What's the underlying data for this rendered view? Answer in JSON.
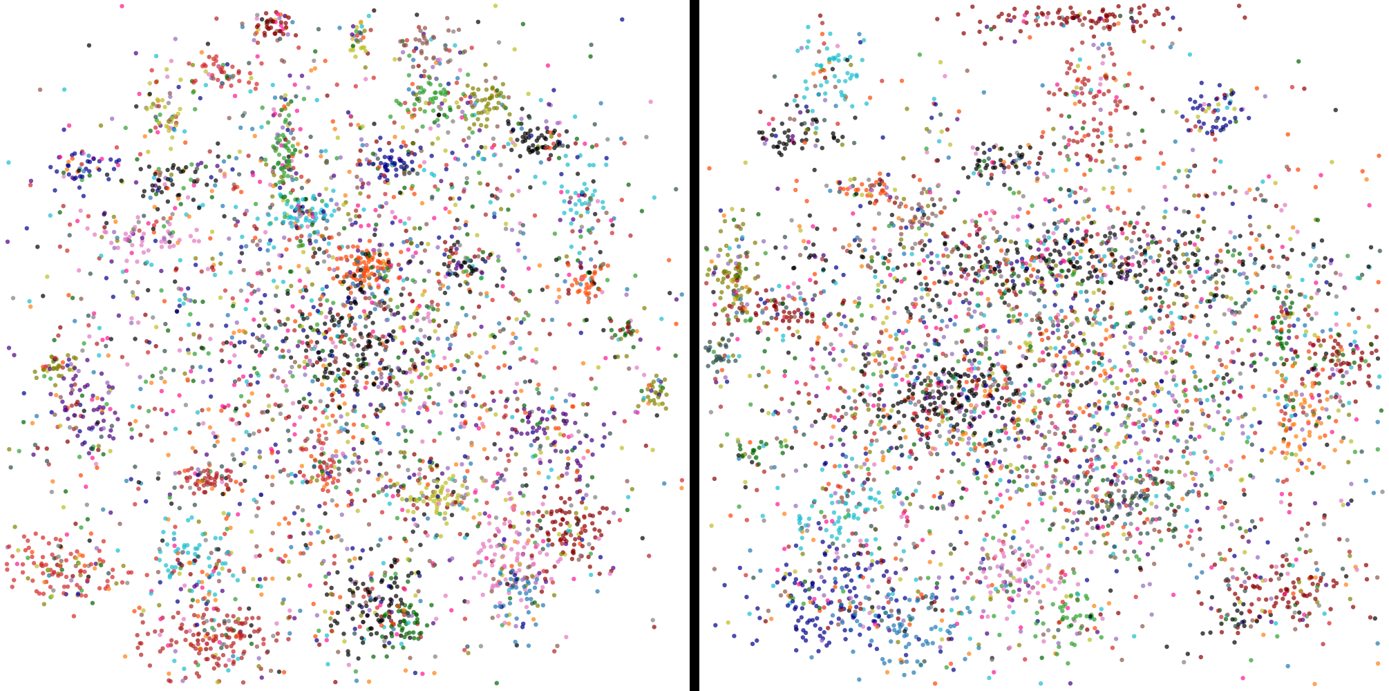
{
  "figure": {
    "divider_color": "#000000",
    "background_color": "#ffffff"
  },
  "palette": [
    "#1f77b4",
    "#ff7f0e",
    "#2ca02c",
    "#d62728",
    "#9467bd",
    "#8c564b",
    "#e377c2",
    "#7f7f7f",
    "#bcbd22",
    "#17becf",
    "#000000",
    "#ff4500",
    "#006400",
    "#8b0000",
    "#00008b",
    "#808000",
    "#4b0082",
    "#ff1493",
    "#2f4f4f",
    "#b22222"
  ],
  "chart_data": [
    {
      "type": "scatter",
      "title": "",
      "xlabel": "",
      "ylabel": "",
      "axes_visible": false,
      "grid": false,
      "legend": "none",
      "xlim": [
        0,
        100
      ],
      "ylim": [
        0,
        100
      ],
      "point_opacity": 0.7,
      "seed": 11,
      "n_background": 2200,
      "background_center": [
        50,
        50
      ],
      "background_spread": [
        22,
        24
      ],
      "clusters": [
        {
          "x": 39,
          "y": 3,
          "sx": 1.5,
          "sy": 1.0,
          "n": 45,
          "color": "#8b0000"
        },
        {
          "x": 31,
          "y": 10,
          "sx": 3.5,
          "sy": 1.5,
          "n": 50,
          "color": "#d62728"
        },
        {
          "x": 52,
          "y": 5,
          "sx": 1.0,
          "sy": 1.5,
          "n": 25,
          "color": "#bcbd22"
        },
        {
          "x": 62,
          "y": 6,
          "sx": 2.0,
          "sy": 2.0,
          "n": 40,
          "color": "#8c564b"
        },
        {
          "x": 24,
          "y": 16,
          "sx": 1.5,
          "sy": 2.0,
          "n": 40,
          "color": "#bcbd22"
        },
        {
          "x": 62,
          "y": 14,
          "sx": 3.0,
          "sy": 2.0,
          "n": 60,
          "color": "#2ca02c"
        },
        {
          "x": 70,
          "y": 14,
          "sx": 2.0,
          "sy": 2.0,
          "n": 60,
          "color": "#808000"
        },
        {
          "x": 79,
          "y": 20,
          "sx": 3.0,
          "sy": 1.5,
          "n": 70,
          "color": "#000000"
        },
        {
          "x": 11,
          "y": 24,
          "sx": 2.5,
          "sy": 1.5,
          "n": 45,
          "color": "#00008b"
        },
        {
          "x": 24,
          "y": 26,
          "sx": 3.5,
          "sy": 1.5,
          "n": 55,
          "color": "#000000"
        },
        {
          "x": 41,
          "y": 22,
          "sx": 1.0,
          "sy": 5.0,
          "n": 80,
          "color": "#2ca02c"
        },
        {
          "x": 57,
          "y": 23,
          "sx": 2.5,
          "sy": 1.5,
          "n": 55,
          "color": "#00008b"
        },
        {
          "x": 85,
          "y": 29,
          "sx": 2.0,
          "sy": 3.5,
          "n": 55,
          "color": "#17becf"
        },
        {
          "x": 20,
          "y": 34,
          "sx": 4.0,
          "sy": 1.5,
          "n": 60,
          "color": "#e377c2"
        },
        {
          "x": 44,
          "y": 31,
          "sx": 3.0,
          "sy": 2.0,
          "n": 70,
          "color": "#17becf"
        },
        {
          "x": 53,
          "y": 38,
          "sx": 2.0,
          "sy": 2.0,
          "n": 90,
          "color": "#ff4500"
        },
        {
          "x": 68,
          "y": 38,
          "sx": 2.5,
          "sy": 1.5,
          "n": 50,
          "color": "#000000"
        },
        {
          "x": 86,
          "y": 40,
          "sx": 1.5,
          "sy": 1.5,
          "n": 45,
          "color": "#ff4500"
        },
        {
          "x": 91,
          "y": 48,
          "sx": 1.0,
          "sy": 1.0,
          "n": 25,
          "color": "#006400"
        },
        {
          "x": 7,
          "y": 53,
          "sx": 1.5,
          "sy": 1.0,
          "n": 35,
          "color": "#808000"
        },
        {
          "x": 96,
          "y": 57,
          "sx": 1.0,
          "sy": 1.5,
          "n": 30,
          "color": "#808000"
        },
        {
          "x": 12,
          "y": 60,
          "sx": 2.5,
          "sy": 3.5,
          "n": 70,
          "color": "#4b0082"
        },
        {
          "x": 52,
          "y": 50,
          "sx": 5.0,
          "sy": 5.0,
          "n": 180,
          "color": "#000000"
        },
        {
          "x": 79,
          "y": 63,
          "sx": 4.0,
          "sy": 3.0,
          "n": 80,
          "color": "#4b0082"
        },
        {
          "x": 30,
          "y": 70,
          "sx": 2.5,
          "sy": 1.0,
          "n": 50,
          "color": "#b22222"
        },
        {
          "x": 47,
          "y": 68,
          "sx": 1.5,
          "sy": 2.0,
          "n": 40,
          "color": "#d62728"
        },
        {
          "x": 64,
          "y": 72,
          "sx": 4.0,
          "sy": 2.0,
          "n": 80,
          "color": "#bcbd22"
        },
        {
          "x": 83,
          "y": 77,
          "sx": 3.0,
          "sy": 3.5,
          "n": 100,
          "color": "#8b0000"
        },
        {
          "x": 75,
          "y": 81,
          "sx": 3.0,
          "sy": 4.0,
          "n": 110,
          "color": "#e377c2"
        },
        {
          "x": 7,
          "y": 83,
          "sx": 5.0,
          "sy": 2.5,
          "n": 130,
          "color": "#d62728"
        },
        {
          "x": 28,
          "y": 83,
          "sx": 3.5,
          "sy": 3.0,
          "n": 80,
          "color": "#17becf"
        },
        {
          "x": 31,
          "y": 93,
          "sx": 5.0,
          "sy": 3.0,
          "n": 170,
          "color": "#b22222"
        },
        {
          "x": 55,
          "y": 88,
          "sx": 3.5,
          "sy": 4.0,
          "n": 120,
          "color": "#000000"
        },
        {
          "x": 59,
          "y": 91,
          "sx": 2.0,
          "sy": 2.0,
          "n": 50,
          "color": "#006400"
        },
        {
          "x": 76,
          "y": 86,
          "sx": 2.0,
          "sy": 3.0,
          "n": 50,
          "color": "#1f77b4"
        }
      ]
    },
    {
      "type": "scatter",
      "title": "",
      "xlabel": "",
      "ylabel": "",
      "axes_visible": false,
      "grid": false,
      "legend": "none",
      "xlim": [
        0,
        100
      ],
      "ylim": [
        0,
        100
      ],
      "point_opacity": 0.7,
      "seed": 29,
      "n_background": 2600,
      "background_center": [
        52,
        54
      ],
      "background_spread": [
        26,
        18
      ],
      "clusters": [
        {
          "x": 55,
          "y": 2,
          "sx": 8.0,
          "sy": 1.5,
          "n": 120,
          "color": "#8b0000"
        },
        {
          "x": 19,
          "y": 9,
          "sx": 2.5,
          "sy": 3.5,
          "n": 70,
          "color": "#17becf"
        },
        {
          "x": 14,
          "y": 19,
          "sx": 3.0,
          "sy": 2.0,
          "n": 60,
          "color": "#000000"
        },
        {
          "x": 57,
          "y": 14,
          "sx": 3.0,
          "sy": 5.0,
          "n": 100,
          "color": "#b22222"
        },
        {
          "x": 75,
          "y": 16,
          "sx": 2.5,
          "sy": 2.5,
          "n": 55,
          "color": "#00008b"
        },
        {
          "x": 44,
          "y": 23,
          "sx": 2.5,
          "sy": 1.5,
          "n": 50,
          "color": "#000000"
        },
        {
          "x": 23,
          "y": 27,
          "sx": 3.0,
          "sy": 1.0,
          "n": 45,
          "color": "#ff4500"
        },
        {
          "x": 31,
          "y": 31,
          "sx": 2.0,
          "sy": 1.5,
          "n": 40,
          "color": "#8c564b"
        },
        {
          "x": 56,
          "y": 38,
          "sx": 20.0,
          "sy": 3.0,
          "n": 350,
          "color": "#000000"
        },
        {
          "x": 4,
          "y": 40,
          "sx": 2.0,
          "sy": 3.5,
          "n": 90,
          "color": "#808000"
        },
        {
          "x": 10,
          "y": 45,
          "sx": 4.0,
          "sy": 2.0,
          "n": 70,
          "color": "#8b0000"
        },
        {
          "x": 2,
          "y": 51,
          "sx": 2.0,
          "sy": 1.5,
          "n": 40,
          "color": "#2f4f4f"
        },
        {
          "x": 36,
          "y": 58,
          "sx": 7.0,
          "sy": 3.0,
          "n": 200,
          "color": "#000000"
        },
        {
          "x": 85,
          "y": 47,
          "sx": 1.0,
          "sy": 3.0,
          "n": 40,
          "color": "#006400"
        },
        {
          "x": 94,
          "y": 52,
          "sx": 4.0,
          "sy": 2.0,
          "n": 80,
          "color": "#8b0000"
        },
        {
          "x": 88,
          "y": 60,
          "sx": 3.0,
          "sy": 5.0,
          "n": 70,
          "color": "#ff7f0e"
        },
        {
          "x": 62,
          "y": 73,
          "sx": 6.0,
          "sy": 3.0,
          "n": 120,
          "color": "#2f4f4f"
        },
        {
          "x": 7,
          "y": 65,
          "sx": 2.0,
          "sy": 1.0,
          "n": 25,
          "color": "#006400"
        },
        {
          "x": 20,
          "y": 75,
          "sx": 4.0,
          "sy": 3.0,
          "n": 80,
          "color": "#17becf"
        },
        {
          "x": 18,
          "y": 87,
          "sx": 6.0,
          "sy": 4.0,
          "n": 170,
          "color": "#00008b"
        },
        {
          "x": 30,
          "y": 91,
          "sx": 6.0,
          "sy": 3.5,
          "n": 130,
          "color": "#1f77b4"
        },
        {
          "x": 46,
          "y": 84,
          "sx": 3.0,
          "sy": 3.0,
          "n": 70,
          "color": "#e377c2"
        },
        {
          "x": 54,
          "y": 90,
          "sx": 2.5,
          "sy": 3.0,
          "n": 60,
          "color": "#2ca02c"
        },
        {
          "x": 86,
          "y": 86,
          "sx": 5.0,
          "sy": 2.5,
          "n": 110,
          "color": "#8b0000"
        },
        {
          "x": 80,
          "y": 90,
          "sx": 2.0,
          "sy": 1.5,
          "n": 30,
          "color": "#000000"
        }
      ]
    }
  ]
}
